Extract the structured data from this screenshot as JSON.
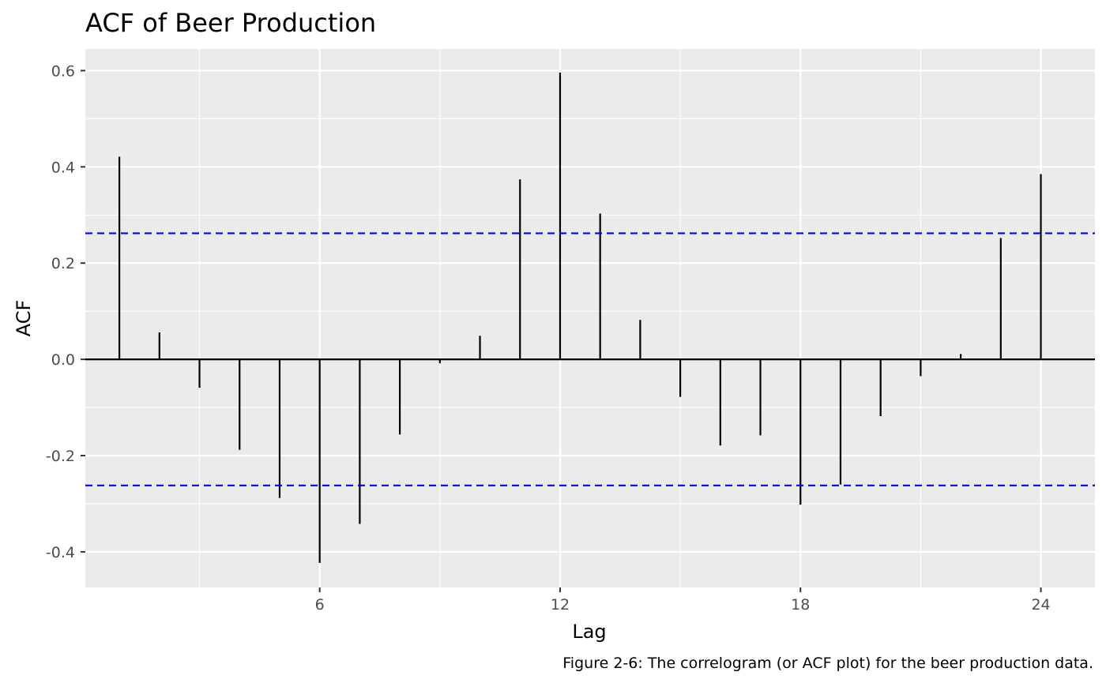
{
  "chart_data": {
    "type": "bar",
    "title": "ACF of Beer Production",
    "xlabel": "Lag",
    "ylabel": "ACF",
    "caption": "Figure 2-6: The correlogram (or ACF plot) for the beer production data.",
    "x": [
      1,
      2,
      3,
      4,
      5,
      6,
      7,
      8,
      9,
      10,
      11,
      12,
      13,
      14,
      15,
      16,
      17,
      18,
      19,
      20,
      21,
      22,
      23,
      24
    ],
    "values": [
      0.421,
      0.056,
      -0.059,
      -0.188,
      -0.288,
      -0.423,
      -0.342,
      -0.156,
      -0.008,
      0.049,
      0.374,
      0.596,
      0.303,
      0.082,
      -0.078,
      -0.179,
      -0.158,
      -0.302,
      -0.26,
      -0.118,
      -0.035,
      0.011,
      0.252,
      0.385
    ],
    "x_ticks": [
      "6",
      "12",
      "18",
      "24"
    ],
    "y_ticks": [
      "-0.4",
      "-0.2",
      "0.0",
      "0.2",
      "0.4",
      "0.6"
    ],
    "xlim": [
      0.15,
      25.35
    ],
    "ylim": [
      -0.474,
      0.645
    ],
    "confidence_bound": 0.262,
    "grid": true,
    "colors": {
      "panel": "#ebebeb",
      "grid": "#ffffff",
      "segments": "#000000",
      "bounds": "#0000ff"
    }
  }
}
